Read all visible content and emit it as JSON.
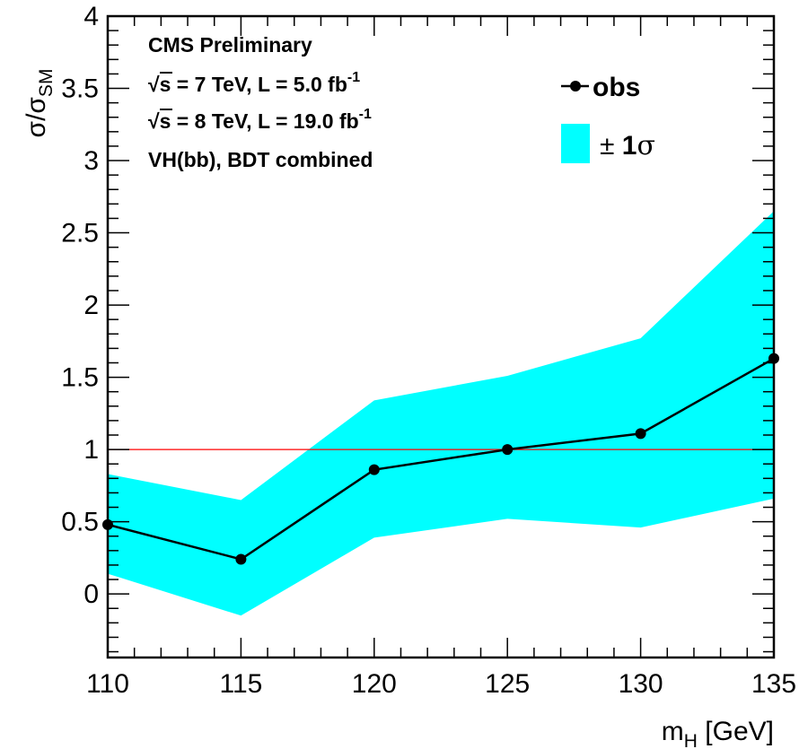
{
  "chart_data": {
    "type": "line",
    "x": [
      110,
      115,
      120,
      125,
      130,
      135
    ],
    "series": [
      {
        "name": "obs",
        "values": [
          0.48,
          0.24,
          0.86,
          1.0,
          1.11,
          1.63
        ],
        "color": "#000000"
      }
    ],
    "band": {
      "name": "± 1σ",
      "lower": [
        0.14,
        -0.15,
        0.39,
        0.52,
        0.46,
        0.66
      ],
      "upper": [
        0.83,
        0.65,
        1.34,
        1.51,
        1.77,
        2.65
      ],
      "color": "#00ffff"
    },
    "reference_line": {
      "y": 1.0,
      "color": "#ff0000"
    },
    "xlim": [
      110,
      135
    ],
    "ylim": [
      -0.44,
      4
    ],
    "x_ticks": [
      "110",
      "115",
      "120",
      "125",
      "130",
      "135"
    ],
    "y_ticks": [
      "0",
      "0.5",
      "1",
      "1.5",
      "2",
      "2.5",
      "3",
      "3.5",
      "4"
    ],
    "xlabel": {
      "main": "m",
      "sub": "H",
      "rest": " [GeV]"
    },
    "ylabel": {
      "main": "σ/σ",
      "sub": "SM"
    },
    "annotations": {
      "line1": "CMS Preliminary",
      "line2": {
        "root": "√",
        "s": "s",
        "text": " = 7 TeV, L = 5.0 fb",
        "sup": "-1"
      },
      "line3": {
        "root": "√",
        "s": "s",
        "text": " = 8 TeV, L = 19.0 fb",
        "sup": "-1"
      },
      "line4": "VH(bb), BDT combined"
    },
    "legend": {
      "position": "top-right",
      "obs_label": "obs",
      "band_label": {
        "pm": "±",
        "one": " 1",
        "sigma": "σ"
      }
    },
    "grid": false
  }
}
